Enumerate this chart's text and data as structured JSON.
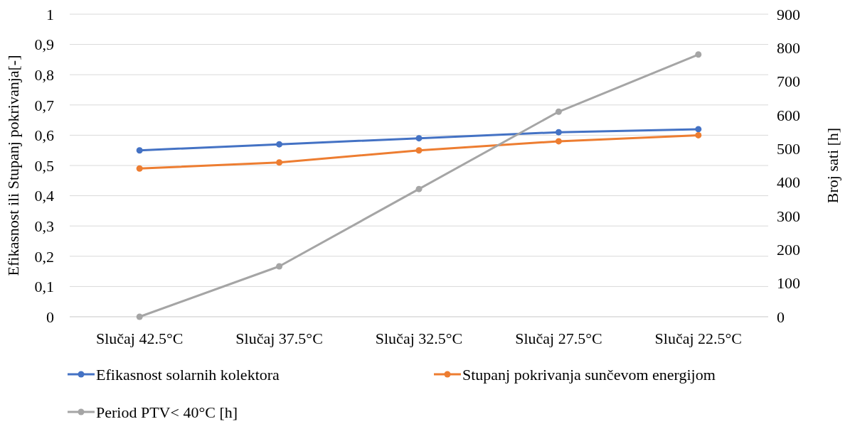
{
  "chart_data": {
    "type": "line",
    "categories": [
      "Slučaj 42.5°C",
      "Slučaj 37.5°C",
      "Slučaj 32.5°C",
      "Slučaj 27.5°C",
      "Slučaj 22.5°C"
    ],
    "ylabel": "Efikasnost ili Stupanj pokrivanja[-]",
    "y2label": "Broj sati [h]",
    "ylim": [
      0,
      1
    ],
    "yticks": [
      0,
      {
        "value": 0.1,
        "label": "0,1"
      },
      {
        "value": 0.2,
        "label": "0,2"
      },
      {
        "value": 0.3,
        "label": "0,3"
      },
      {
        "value": 0.4,
        "label": "0,4"
      },
      {
        "value": 0.5,
        "label": "0,5"
      },
      {
        "value": 0.6,
        "label": "0,6"
      },
      {
        "value": 0.7,
        "label": "0,7"
      },
      {
        "value": 0.8,
        "label": "0,8"
      },
      {
        "value": 0.9,
        "label": "0,9"
      },
      1
    ],
    "y2lim": [
      0,
      900
    ],
    "y2ticks": [
      0,
      100,
      200,
      300,
      400,
      500,
      600,
      700,
      800,
      900
    ],
    "grid": "y",
    "legend": "bottom",
    "marker": "circle",
    "series": [
      {
        "name": "Efikasnost solarnih kolektora",
        "color": "#4472c4",
        "values": [
          0.55,
          0.57,
          0.59,
          0.61,
          0.62
        ]
      },
      {
        "name": "Stupanj pokrivanja sunčevom energijom",
        "color": "#ed7d31",
        "values": [
          0.49,
          0.51,
          0.55,
          0.58,
          0.6
        ]
      },
      {
        "name": "Period PTV< 40°C [h]",
        "color": "#a5a5a5",
        "axis": "y2",
        "values": [
          0,
          150,
          380,
          610,
          780
        ]
      }
    ]
  }
}
